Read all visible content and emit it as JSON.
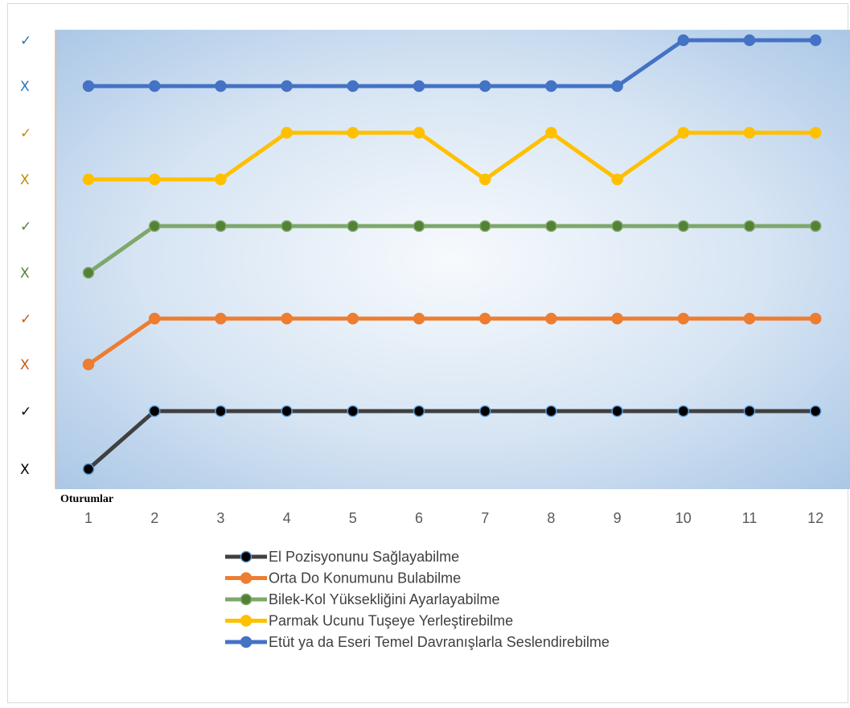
{
  "chart_data": {
    "type": "line",
    "xlabel": "Oturumlar",
    "x": [
      "1",
      "2",
      "3",
      "4",
      "5",
      "6",
      "7",
      "8",
      "9",
      "10",
      "11",
      "12"
    ],
    "y_ticks": [
      {
        "label": "X",
        "color": "#000000"
      },
      {
        "label": "✓",
        "color": "#000000"
      },
      {
        "label": "X",
        "color": "#c55a11"
      },
      {
        "label": "✓",
        "color": "#c55a11"
      },
      {
        "label": "X",
        "color": "#548235"
      },
      {
        "label": "✓",
        "color": "#548235"
      },
      {
        "label": "X",
        "color": "#bf9000"
      },
      {
        "label": "✓",
        "color": "#bf9000"
      },
      {
        "label": "X",
        "color": "#2e75b6"
      },
      {
        "label": "✓",
        "color": "#2e75b6"
      }
    ],
    "ylim": [
      0,
      9
    ],
    "series": [
      {
        "name": "El Pozisyonunu Sağlayabilme",
        "color": "#404040",
        "marker_fill": "#000000",
        "marker_edge": "#5b9bd5",
        "values": [
          0,
          1,
          1,
          1,
          1,
          1,
          1,
          1,
          1,
          1,
          1,
          1
        ]
      },
      {
        "name": "Orta Do Konumunu Bulabilme",
        "color": "#ed7d31",
        "marker_fill": "#ed7d31",
        "marker_edge": "#ed7d31",
        "values": [
          2,
          3,
          3,
          3,
          3,
          3,
          3,
          3,
          3,
          3,
          3,
          3
        ]
      },
      {
        "name": "Bilek-Kol  Yüksekliğini Ayarlayabilme",
        "color": "#7ea86b",
        "marker_fill": "#548235",
        "marker_edge": "#7ea86b",
        "values": [
          4,
          5,
          5,
          5,
          5,
          5,
          5,
          5,
          5,
          5,
          5,
          5
        ]
      },
      {
        "name": "Parmak Ucunu Tuşeye Yerleştirebilme",
        "color": "#ffc000",
        "marker_fill": "#ffc000",
        "marker_edge": "#ffc000",
        "values": [
          6,
          6,
          6,
          7,
          7,
          7,
          6,
          7,
          6,
          7,
          7,
          7
        ]
      },
      {
        "name": "Etüt ya da Eseri Temel Davranışlarla Seslendirebilme",
        "color": "#4472c4",
        "marker_fill": "#4472c4",
        "marker_edge": "#4472c4",
        "values": [
          8,
          8,
          8,
          8,
          8,
          8,
          8,
          8,
          8,
          9,
          9,
          9
        ]
      }
    ],
    "legend_position": "bottom",
    "grid": false
  }
}
